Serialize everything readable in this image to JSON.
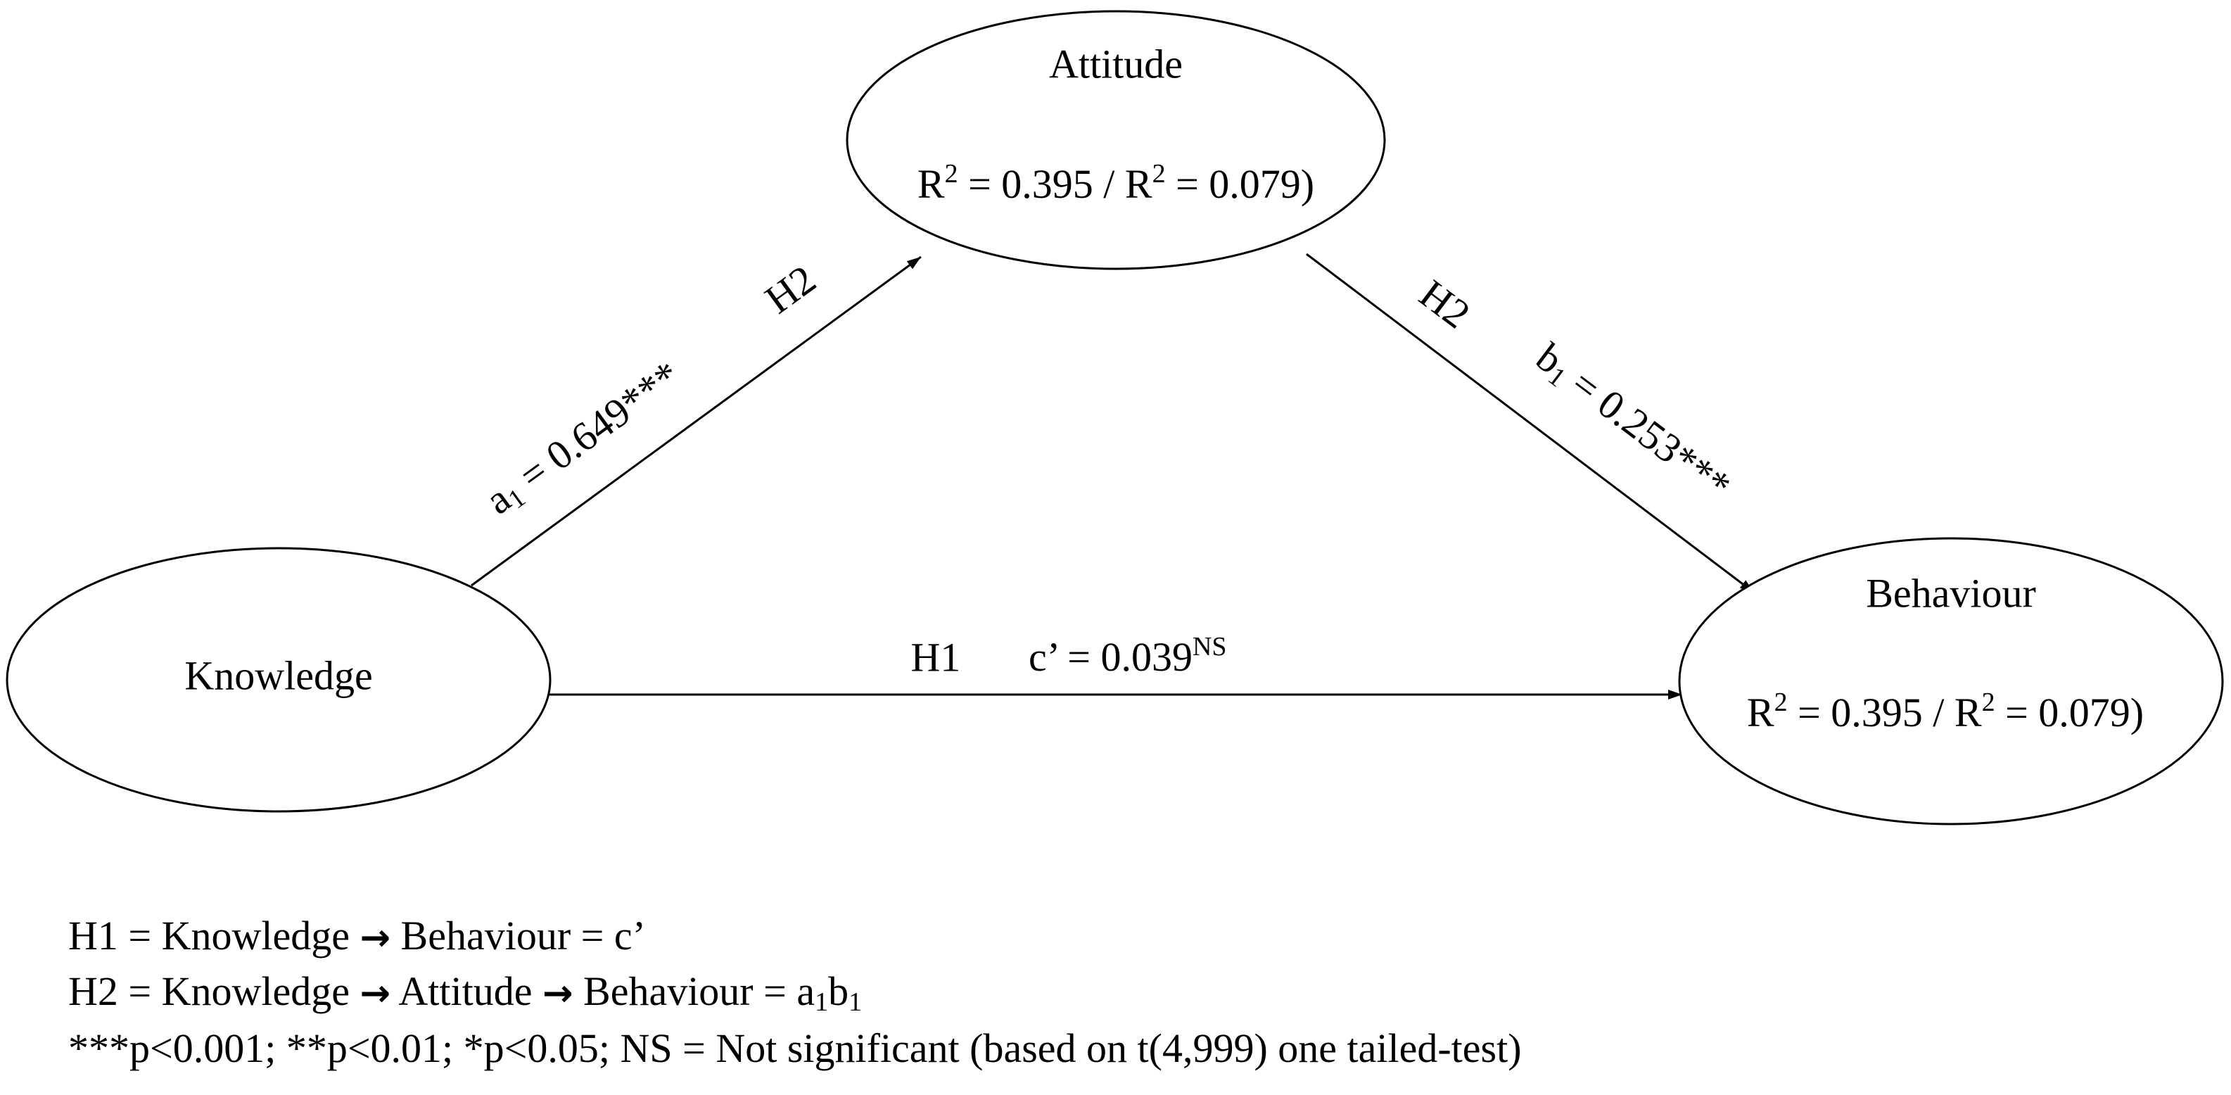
{
  "nodes": [
    {
      "label": "Attitude",
      "stat": [
        "R",
        "2",
        " = 0.395 / R",
        "2",
        " = 0.079)"
      ]
    },
    {
      "label": "Knowledge"
    },
    {
      "label": "Behaviour",
      "stat": [
        "R",
        "2",
        " = 0.395 / R",
        "2",
        " = 0.079)"
      ]
    }
  ],
  "edges": [
    {
      "hypothesis": "H2",
      "coefficient": [
        "a",
        "1",
        " = 0.649***"
      ]
    },
    {
      "hypothesis": "H2",
      "coefficient": [
        "b",
        "1",
        " = 0.253***"
      ]
    },
    {
      "hypothesis": "H1",
      "coefficient": [
        "c’ = 0.039",
        "NS"
      ]
    }
  ],
  "notes": [
    [
      "H1 = Knowledge ",
      "→",
      " Behaviour = c’"
    ],
    [
      "H2 = Knowledge ",
      "→",
      " Attitude ",
      "→",
      " Behaviour = a",
      "1",
      "b",
      "1"
    ],
    [
      "***p<0.001; **p<0.01; *p<0.05; NS = Not significant (based on t(4,999) one tailed-test)"
    ]
  ]
}
